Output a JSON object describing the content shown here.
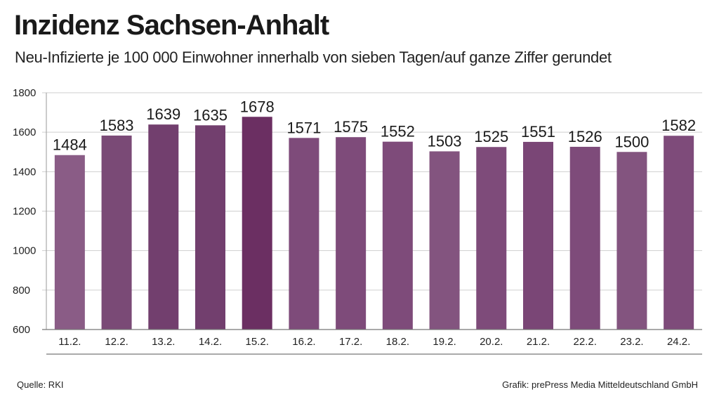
{
  "header": {
    "title": "Inzidenz Sachsen-Anhalt",
    "subtitle": "Neu-Infizierte je 100 000 Einwohner innerhalb von sieben Tagen/auf ganze Ziffer gerundet"
  },
  "footer": {
    "source": "Quelle: RKI",
    "credit": "Grafik: prePress Media Mitteldeutschland GmbH"
  },
  "chart_data": {
    "type": "bar",
    "title": "Inzidenz Sachsen-Anhalt",
    "xlabel": "",
    "ylabel": "",
    "categories": [
      "11.2.",
      "12.2.",
      "13.2.",
      "14.2.",
      "15.2.",
      "16.2.",
      "17.2.",
      "18.2.",
      "19.2.",
      "20.2.",
      "21.2.",
      "22.2.",
      "23.2.",
      "24.2."
    ],
    "values": [
      1484,
      1583,
      1639,
      1635,
      1678,
      1571,
      1575,
      1552,
      1503,
      1525,
      1551,
      1526,
      1500,
      1582
    ],
    "ylim": [
      600,
      1800
    ],
    "yticks": [
      600,
      800,
      1000,
      1200,
      1400,
      1600,
      1800
    ],
    "grid": true,
    "bar_colors": [
      "#8a5c86",
      "#7a4a76",
      "#723f6e",
      "#723f6e",
      "#6b2f62",
      "#7e4b7a",
      "#7e4b7a",
      "#7e4b7a",
      "#83547f",
      "#7e4b7a",
      "#7a4676",
      "#7e4b7a",
      "#83547f",
      "#7e4b7a"
    ]
  }
}
